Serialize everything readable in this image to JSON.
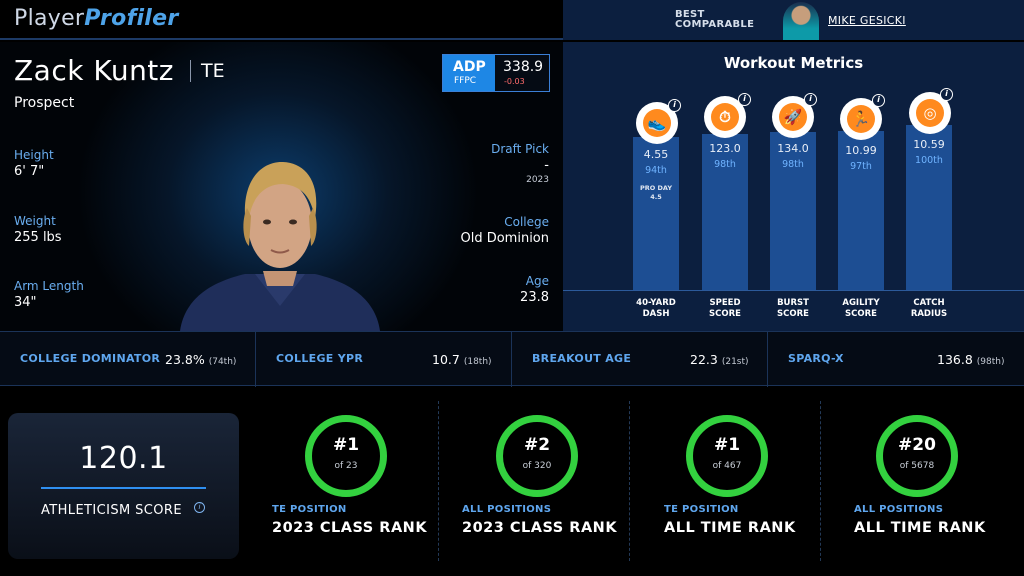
{
  "header": {
    "logo_plain": "Player",
    "logo_bold": "Profiler"
  },
  "comparable": {
    "label_line1": "BEST",
    "label_line2": "COMPARABLE",
    "name": "MIKE GESICKI"
  },
  "player": {
    "name": "Zack Kuntz",
    "position": "TE",
    "status": "Prospect",
    "adp": {
      "label": "ADP",
      "source": "FFPC",
      "value": "338.9",
      "delta": "-0.03"
    },
    "left_stats": [
      {
        "label": "Height",
        "value": "6' 7\""
      },
      {
        "label": "Weight",
        "value": "255 lbs"
      },
      {
        "label": "Arm Length",
        "value": "34\""
      }
    ],
    "right_stats": [
      {
        "label": "Draft Pick",
        "value": "-",
        "sub": "2023"
      },
      {
        "label": "College",
        "value": "Old Dominion"
      },
      {
        "label": "Age",
        "value": "23.8"
      }
    ]
  },
  "workout": {
    "title": "Workout Metrics",
    "metrics": [
      {
        "name": "40-YARD\nDASH",
        "value": "4.55",
        "percentile": "94th",
        "extra_label": "PRO DAY",
        "extra_value": "4.5",
        "icon": "running-shoe-icon",
        "glyph": "👟"
      },
      {
        "name": "SPEED\nSCORE",
        "value": "123.0",
        "percentile": "98th",
        "icon": "stopwatch-icon",
        "glyph": "⏱"
      },
      {
        "name": "BURST\nSCORE",
        "value": "134.0",
        "percentile": "98th",
        "icon": "rocket-icon",
        "glyph": "🚀"
      },
      {
        "name": "AGILITY\nSCORE",
        "value": "10.99",
        "percentile": "97th",
        "icon": "runner-icon",
        "glyph": "🏃"
      },
      {
        "name": "CATCH\nRADIUS",
        "value": "10.59",
        "percentile": "100th",
        "icon": "target-icon",
        "glyph": "◎"
      }
    ]
  },
  "stats_row": [
    {
      "label": "COLLEGE DOMINATOR",
      "value": "23.8%",
      "rank": "(74th)"
    },
    {
      "label": "COLLEGE YPR",
      "value": "10.7",
      "rank": "(18th)"
    },
    {
      "label": "BREAKOUT AGE",
      "value": "22.3",
      "rank": "(21st)"
    },
    {
      "label": "SPARQ-X",
      "value": "136.8",
      "rank": "(98th)"
    }
  ],
  "athleticism": {
    "value": "120.1",
    "label": "ATHLETICISM SCORE"
  },
  "ranks": [
    {
      "rank": "#1",
      "of": "of 23",
      "scope": "TE POSITION",
      "label": "2023 CLASS RANK"
    },
    {
      "rank": "#2",
      "of": "of 320",
      "scope": "ALL POSITIONS",
      "label": "2023 CLASS RANK"
    },
    {
      "rank": "#1",
      "of": "of 467",
      "scope": "TE POSITION",
      "label": "ALL TIME RANK"
    },
    {
      "rank": "#20",
      "of": "of 5678",
      "scope": "ALL POSITIONS",
      "label": "ALL TIME RANK"
    }
  ],
  "colors": {
    "accent_blue": "#1e87e5",
    "ring_green": "#33d13f",
    "panel_navy": "#0c1f3f",
    "icon_orange": "#ff8a1e"
  }
}
